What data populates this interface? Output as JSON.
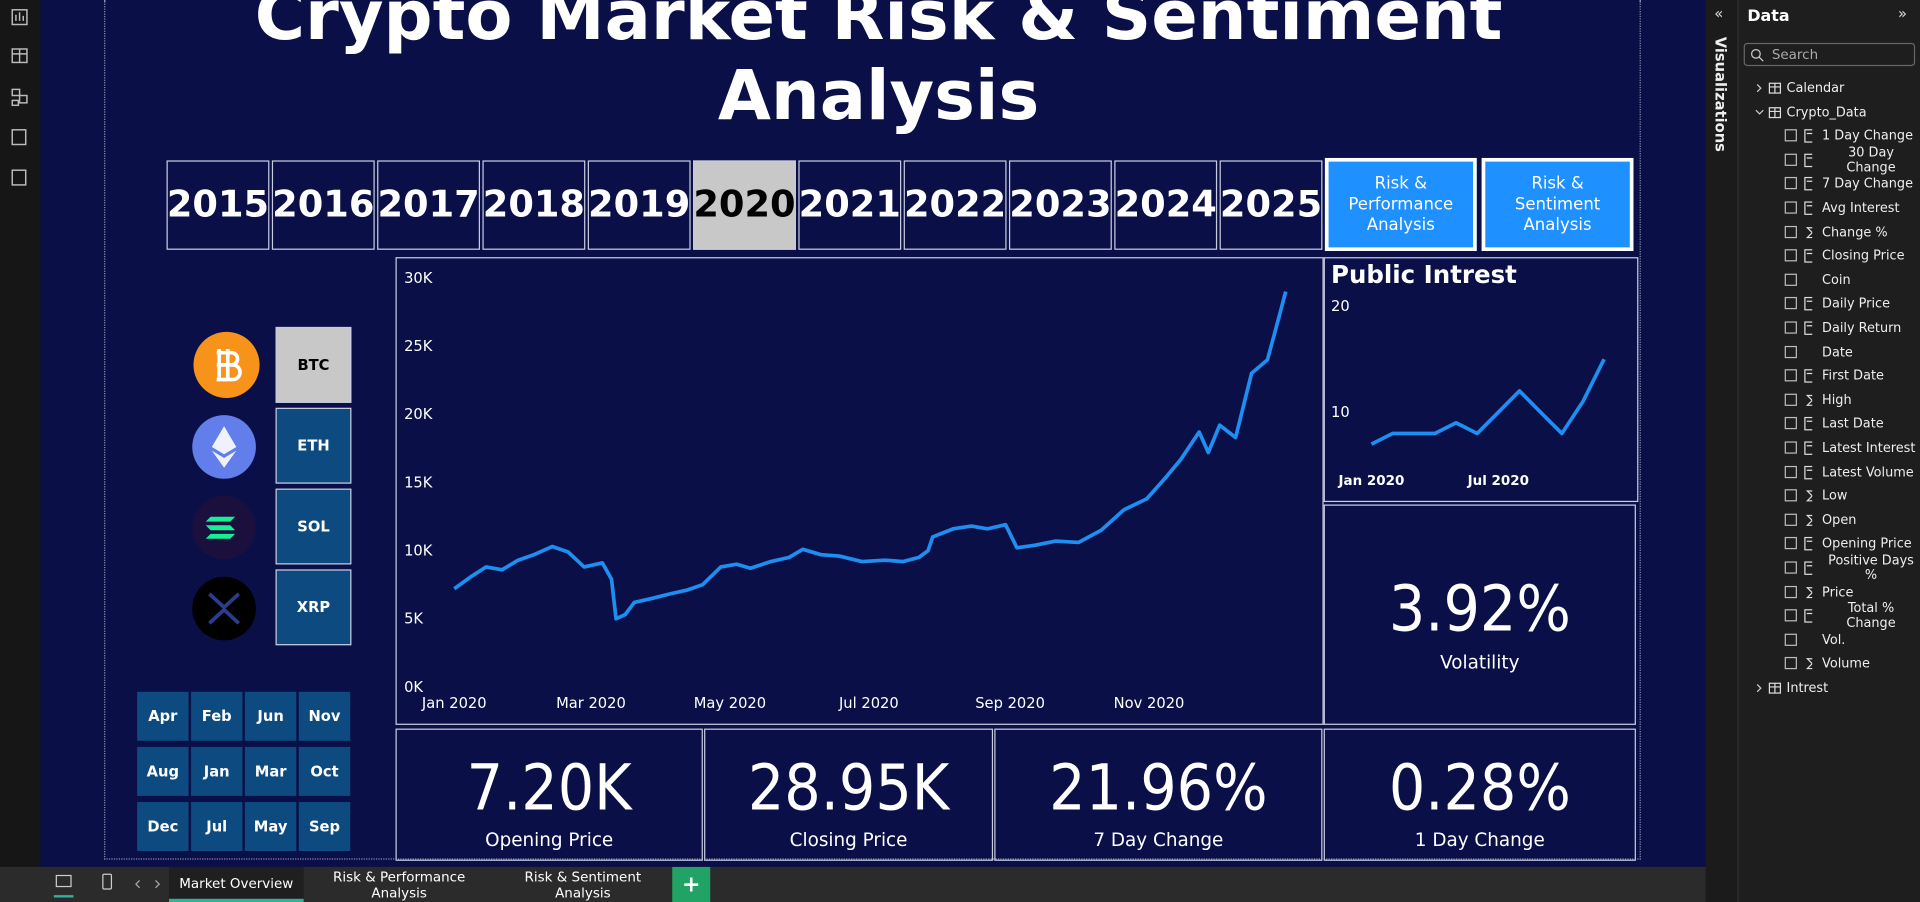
{
  "title": "Crypto Market Risk & Sentiment Analysis",
  "years": [
    "2015",
    "2016",
    "2017",
    "2018",
    "2019",
    "2020",
    "2021",
    "2022",
    "2023",
    "2024",
    "2025"
  ],
  "selected_year": "2020",
  "nav_buttons": [
    "Risk & Performance Analysis",
    "Risk & Sentiment Analysis"
  ],
  "coins": [
    "BTC",
    "ETH",
    "SOL",
    "XRP"
  ],
  "selected_coin": "BTC",
  "months": [
    "Apr",
    "Feb",
    "Jun",
    "Nov",
    "Aug",
    "Jan",
    "Mar",
    "Oct",
    "Dec",
    "Jul",
    "May",
    "Sep"
  ],
  "kpis": [
    {
      "value": "3.92%",
      "label": "Volatility"
    },
    {
      "value": "7.20K",
      "label": "Opening Price"
    },
    {
      "value": "28.95K",
      "label": "Closing Price"
    },
    {
      "value": "21.96%",
      "label": "7 Day Change"
    },
    {
      "value": "0.28%",
      "label": "1 Day Change"
    }
  ],
  "chart_data": [
    {
      "type": "line",
      "color": "#1e8ff0",
      "x": [
        1,
        8,
        15,
        22,
        29,
        36,
        44,
        51,
        58,
        66,
        70,
        72,
        76,
        80,
        88,
        95,
        103,
        110,
        118,
        125,
        131,
        140,
        148,
        154,
        162,
        170,
        180,
        190,
        198,
        205,
        209,
        211,
        220,
        228,
        235,
        243,
        248,
        256,
        265,
        275,
        285,
        295,
        305,
        313,
        320,
        328,
        332,
        337,
        344,
        351,
        358,
        362,
        366
      ],
      "values": [
        7200,
        8050,
        8800,
        8600,
        9300,
        9700,
        10300,
        9900,
        8800,
        9100,
        7900,
        5000,
        5300,
        6200,
        6500,
        6800,
        7100,
        7500,
        8800,
        9000,
        8700,
        9200,
        9500,
        10100,
        9700,
        9600,
        9200,
        9300,
        9200,
        9500,
        10000,
        11000,
        11600,
        11800,
        11600,
        11900,
        10200,
        10400,
        10700,
        10600,
        11500,
        13000,
        13800,
        15300,
        16700,
        18700,
        17200,
        19200,
        18300,
        23000,
        24000,
        26500,
        29000
      ],
      "xlim": [
        1,
        366
      ],
      "xticks": [
        {
          "value": 1,
          "label": "Jan 2020"
        },
        {
          "value": 61,
          "label": "Mar 2020"
        },
        {
          "value": 122,
          "label": "May 2020"
        },
        {
          "value": 183,
          "label": "Jul 2020"
        },
        {
          "value": 245,
          "label": "Sep 2020"
        },
        {
          "value": 306,
          "label": "Nov 2020"
        }
      ],
      "ylim": [
        0,
        30000
      ],
      "yticks": [
        {
          "value": 0,
          "label": "0K"
        },
        {
          "value": 5000,
          "label": "5K"
        },
        {
          "value": 10000,
          "label": "10K"
        },
        {
          "value": 15000,
          "label": "15K"
        },
        {
          "value": 20000,
          "label": "20K"
        },
        {
          "value": 25000,
          "label": "25K"
        },
        {
          "value": 30000,
          "label": "30K"
        }
      ]
    },
    {
      "type": "line",
      "title": "Public Intrest",
      "color": "#1e8ff0",
      "categories": [
        "Jan 2020",
        null,
        null,
        null,
        null,
        null,
        "Jul 2020",
        null,
        null,
        null,
        null,
        null
      ],
      "values": [
        7,
        8,
        8,
        8,
        9,
        8,
        10,
        12,
        10,
        8,
        11,
        15
      ],
      "ylim": [
        5,
        20
      ],
      "yticks": [
        10,
        20
      ]
    }
  ],
  "data_pane": {
    "title": "Data",
    "search_placeholder": "Search",
    "side_tab": "Visualizations",
    "tables": [
      {
        "name": "Calendar",
        "expanded": false
      },
      {
        "name": "Crypto_Data",
        "expanded": true,
        "fields": [
          {
            "name": "1 Day Change",
            "kind": "measure"
          },
          {
            "name": "30 Day Change",
            "kind": "measure"
          },
          {
            "name": "7 Day Change",
            "kind": "measure"
          },
          {
            "name": "Avg Interest",
            "kind": "measure"
          },
          {
            "name": "Change %",
            "kind": "sum"
          },
          {
            "name": "Closing Price",
            "kind": "measure"
          },
          {
            "name": "Coin",
            "kind": "plain"
          },
          {
            "name": "Daily Price",
            "kind": "measure"
          },
          {
            "name": "Daily Return",
            "kind": "measure"
          },
          {
            "name": "Date",
            "kind": "plain"
          },
          {
            "name": "First Date",
            "kind": "measure"
          },
          {
            "name": "High",
            "kind": "sum"
          },
          {
            "name": "Last Date",
            "kind": "measure"
          },
          {
            "name": "Latest Interest",
            "kind": "measure"
          },
          {
            "name": "Latest Volume",
            "kind": "measure"
          },
          {
            "name": "Low",
            "kind": "sum"
          },
          {
            "name": "Open",
            "kind": "sum"
          },
          {
            "name": "Opening Price",
            "kind": "measure"
          },
          {
            "name": "Positive Days %",
            "kind": "measure"
          },
          {
            "name": "Price",
            "kind": "sum"
          },
          {
            "name": "Total % Change",
            "kind": "measure"
          },
          {
            "name": "Vol.",
            "kind": "plain"
          },
          {
            "name": "Volume",
            "kind": "sum"
          }
        ]
      },
      {
        "name": "Intrest",
        "expanded": false
      }
    ]
  },
  "page_tabs": [
    "Market Overview",
    "Risk & Performance Analysis",
    "Risk & Sentiment Analysis"
  ],
  "active_tab": "Market Overview"
}
